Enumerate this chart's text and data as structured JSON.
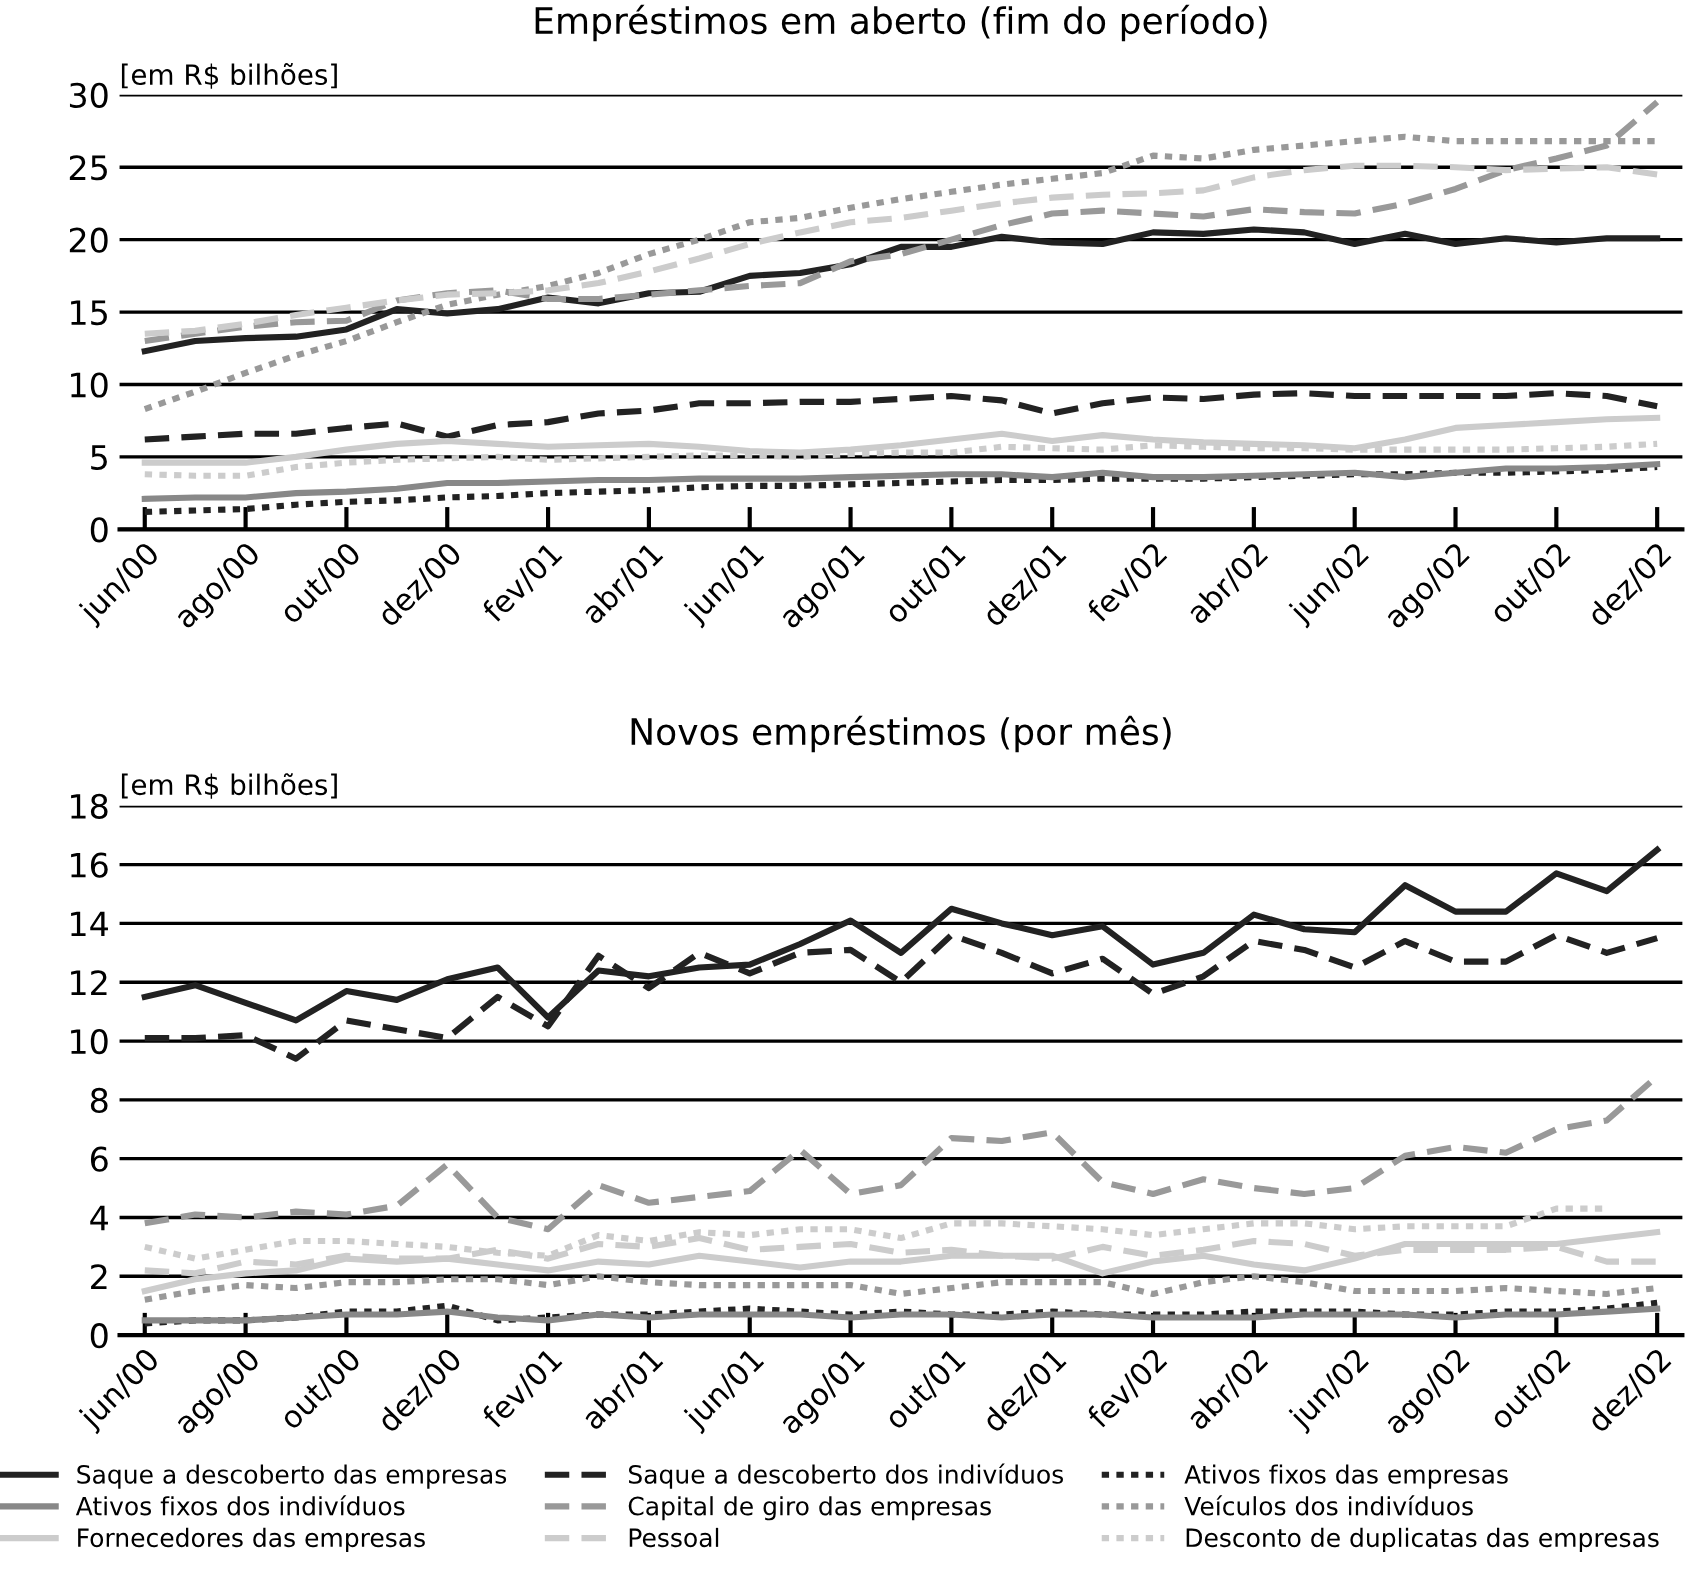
{
  "chart_data": [
    {
      "type": "line",
      "title": "Empréstimos em aberto (fim do período)",
      "ylabel": "[em R$ bilhões]",
      "categories": [
        "jun/00",
        null,
        "ago/00",
        null,
        "out/00",
        null,
        "dez/00",
        null,
        "fev/01",
        null,
        "abr/01",
        null,
        "jun/01",
        null,
        "ago/01",
        null,
        "out/01",
        null,
        "dez/01",
        null,
        "fev/02",
        null,
        "abr/02",
        null,
        "jun/02",
        null,
        "ago/02",
        null,
        "out/02",
        null,
        "dez/02"
      ],
      "ylim": [
        0,
        30
      ],
      "yticks": [
        0,
        5,
        10,
        15,
        20,
        25,
        30
      ],
      "grid": "y",
      "marker": "none",
      "series": [
        {
          "color": "#222222",
          "line_style": "solid",
          "values": [
            12.3,
            13,
            13.2,
            13.3,
            13.8,
            15.2,
            14.9,
            15.2,
            16,
            15.6,
            16.3,
            16.4,
            17.5,
            17.7,
            18.3,
            19.5,
            19.5,
            20.2,
            19.8,
            19.7,
            20.5,
            20.4,
            20.7,
            20.5,
            19.7,
            20.4,
            19.7,
            20.1,
            19.8,
            20.1,
            20.1
          ]
        },
        {
          "color": "#222222",
          "line_style": "dashed",
          "values": [
            6.2,
            6.4,
            6.6,
            6.6,
            7.0,
            7.3,
            6.4,
            7.2,
            7.4,
            8.0,
            8.2,
            8.7,
            8.7,
            8.8,
            8.8,
            9.0,
            9.2,
            8.9,
            8.0,
            8.7,
            9.1,
            9.0,
            9.3,
            9.4,
            9.2,
            9.2,
            9.2,
            9.2,
            9.4,
            9.2,
            8.5
          ]
        },
        {
          "color": "#222222",
          "line_style": "dotted",
          "values": [
            1.2,
            1.3,
            1.4,
            1.7,
            1.9,
            2.0,
            2.2,
            2.3,
            2.5,
            2.6,
            2.7,
            2.9,
            3.0,
            3.0,
            3.1,
            3.2,
            3.3,
            3.4,
            3.4,
            3.5,
            3.5,
            3.5,
            3.6,
            3.7,
            3.8,
            3.8,
            3.9,
            3.9,
            4.0,
            4.1,
            4.3
          ]
        },
        {
          "color": "#888888",
          "line_style": "solid",
          "values": [
            2.1,
            2.2,
            2.2,
            2.5,
            2.6,
            2.8,
            3.2,
            3.2,
            3.3,
            3.4,
            3.4,
            3.5,
            3.5,
            3.5,
            3.6,
            3.7,
            3.8,
            3.8,
            3.6,
            3.9,
            3.6,
            3.6,
            3.7,
            3.8,
            3.9,
            3.6,
            3.9,
            4.2,
            4.2,
            4.3,
            4.5
          ]
        },
        {
          "color": "#999999",
          "line_style": "dashed",
          "values": [
            13.0,
            13.5,
            14.0,
            14.3,
            14.4,
            15.8,
            16.3,
            16.5,
            15.9,
            15.9,
            16.2,
            16.5,
            16.8,
            17.0,
            18.5,
            19.0,
            20.0,
            21.0,
            21.8,
            22.0,
            21.8,
            21.6,
            22.1,
            21.9,
            21.8,
            22.5,
            23.5,
            24.8,
            25.6,
            26.5,
            29.5
          ]
        },
        {
          "color": "#999999",
          "line_style": "dotted",
          "values": [
            8.3,
            9.5,
            10.8,
            12,
            13,
            14.3,
            15.5,
            16.2,
            16.8,
            17.7,
            19,
            20,
            21.2,
            21.5,
            22.2,
            22.8,
            23.3,
            23.8,
            24.2,
            24.6,
            25.8,
            25.6,
            26.2,
            26.5,
            26.8,
            27.1,
            26.8,
            26.8,
            26.8,
            26.8,
            26.8
          ]
        },
        {
          "color": "#cccccc",
          "line_style": "solid",
          "values": [
            4.6,
            4.6,
            4.6,
            5.0,
            5.5,
            5.9,
            6.1,
            5.9,
            5.7,
            5.8,
            5.9,
            5.7,
            5.4,
            5.3,
            5.5,
            5.8,
            6.2,
            6.6,
            6.1,
            6.5,
            6.2,
            6.0,
            5.9,
            5.8,
            5.6,
            6.2,
            7.0,
            7.2,
            7.4,
            7.6,
            7.7
          ]
        },
        {
          "color": "#cccccc",
          "line_style": "dashed",
          "values": [
            13.5,
            13.7,
            14.2,
            14.8,
            15.3,
            15.8,
            16.2,
            16.3,
            16.5,
            17.0,
            17.8,
            18.7,
            19.7,
            20.5,
            21.2,
            21.5,
            22.0,
            22.5,
            22.9,
            23.1,
            23.2,
            23.4,
            24.3,
            24.8,
            25.1,
            25.1,
            25.0,
            24.8,
            24.9,
            25.0,
            24.5
          ]
        },
        {
          "color": "#cccccc",
          "line_style": "dotted",
          "values": [
            3.8,
            3.7,
            3.7,
            4.3,
            4.6,
            4.8,
            4.9,
            5.0,
            4.8,
            4.9,
            5.0,
            5.1,
            5.1,
            5.0,
            5.2,
            5.3,
            5.3,
            5.7,
            5.6,
            5.5,
            5.8,
            5.7,
            5.6,
            5.6,
            5.5,
            5.5,
            5.5,
            5.5,
            5.6,
            5.7,
            5.9
          ]
        }
      ]
    },
    {
      "type": "line",
      "title": "Novos empréstimos (por mês)",
      "ylabel": "[em R$ bilhões]",
      "categories": [
        "jun/00",
        null,
        "ago/00",
        null,
        "out/00",
        null,
        "dez/00",
        null,
        "fev/01",
        null,
        "abr/01",
        null,
        "jun/01",
        null,
        "ago/01",
        null,
        "out/01",
        null,
        "dez/01",
        null,
        "fev/02",
        null,
        "abr/02",
        null,
        "jun/02",
        null,
        "ago/02",
        null,
        "out/02",
        null,
        "dez/02"
      ],
      "ylim": [
        0,
        18
      ],
      "yticks": [
        0,
        2,
        4,
        6,
        8,
        10,
        12,
        14,
        16,
        18
      ],
      "grid": "y",
      "marker": "none",
      "legend": "bottom",
      "series": [
        {
          "name": "Saque a descoberto das empresas",
          "color": "#222222",
          "line_style": "solid",
          "values": [
            11.5,
            11.9,
            11.3,
            10.7,
            11.7,
            11.4,
            12.1,
            12.5,
            10.8,
            12.4,
            12.2,
            12.5,
            12.6,
            13.3,
            14.1,
            13.0,
            14.5,
            14.0,
            13.6,
            13.9,
            12.6,
            13.0,
            14.3,
            13.8,
            13.7,
            15.3,
            14.4,
            14.4,
            15.7,
            15.1,
            16.5
          ]
        },
        {
          "name": "Saque a descoberto dos indivíduos",
          "color": "#222222",
          "line_style": "dashed",
          "values": [
            10.1,
            10.1,
            10.2,
            9.4,
            10.7,
            10.4,
            10.1,
            11.5,
            10.5,
            12.9,
            11.8,
            13.0,
            12.3,
            13.0,
            13.1,
            12.0,
            13.6,
            13.0,
            12.3,
            12.8,
            11.6,
            12.2,
            13.4,
            13.1,
            12.5,
            13.4,
            12.7,
            12.7,
            13.6,
            13.0,
            13.5
          ]
        },
        {
          "name": "Ativos fixos das empresas",
          "color": "#222222",
          "line_style": "dotted",
          "values": [
            0.4,
            0.5,
            0.5,
            0.6,
            0.8,
            0.8,
            1.0,
            0.5,
            0.6,
            0.7,
            0.7,
            0.8,
            0.9,
            0.8,
            0.7,
            0.8,
            0.7,
            0.7,
            0.8,
            0.7,
            0.7,
            0.7,
            0.8,
            0.8,
            0.8,
            0.7,
            0.7,
            0.8,
            0.8,
            0.9,
            1.1
          ]
        },
        {
          "name": "Ativos fixos dos indivíduos",
          "color": "#888888",
          "line_style": "solid",
          "values": [
            0.5,
            0.5,
            0.5,
            0.6,
            0.7,
            0.7,
            0.8,
            0.6,
            0.5,
            0.7,
            0.6,
            0.7,
            0.7,
            0.7,
            0.6,
            0.7,
            0.7,
            0.6,
            0.7,
            0.7,
            0.6,
            0.6,
            0.6,
            0.7,
            0.7,
            0.7,
            0.6,
            0.7,
            0.7,
            0.8,
            0.9
          ]
        },
        {
          "name": "Capital de giro das empresas",
          "color": "#999999",
          "line_style": "dashed",
          "values": [
            3.8,
            4.1,
            4.0,
            4.2,
            4.1,
            4.4,
            5.8,
            4.0,
            3.6,
            5.1,
            4.5,
            4.7,
            4.9,
            6.3,
            4.8,
            5.1,
            6.7,
            6.6,
            6.9,
            5.2,
            4.8,
            5.3,
            5.0,
            4.8,
            5.0,
            6.1,
            6.4,
            6.2,
            7.0,
            7.3,
            8.8
          ]
        },
        {
          "name": "Veículos dos indivíduos",
          "color": "#999999",
          "line_style": "dotted",
          "values": [
            1.2,
            1.5,
            1.7,
            1.6,
            1.8,
            1.8,
            1.9,
            1.9,
            1.7,
            2.0,
            1.8,
            1.7,
            1.7,
            1.7,
            1.7,
            1.4,
            1.6,
            1.8,
            1.8,
            1.8,
            1.4,
            1.8,
            2.0,
            1.8,
            1.5,
            1.5,
            1.5,
            1.6,
            1.5,
            1.4,
            1.6
          ]
        },
        {
          "name": "Fornecedores das empresas",
          "color": "#cccccc",
          "line_style": "solid",
          "values": [
            1.5,
            1.9,
            2.1,
            2.2,
            2.6,
            2.5,
            2.6,
            2.4,
            2.2,
            2.5,
            2.4,
            2.7,
            2.5,
            2.3,
            2.5,
            2.5,
            2.7,
            2.7,
            2.7,
            2.1,
            2.5,
            2.7,
            2.4,
            2.2,
            2.6,
            3.1,
            3.1,
            3.1,
            3.1,
            3.3,
            3.5
          ]
        },
        {
          "name": "Pessoal",
          "color": "#cccccc",
          "line_style": "dashed",
          "values": [
            2.2,
            2.1,
            2.5,
            2.4,
            2.7,
            2.6,
            2.6,
            2.9,
            2.6,
            3.1,
            3.0,
            3.3,
            2.9,
            3.0,
            3.1,
            2.8,
            2.9,
            2.7,
            2.6,
            3.0,
            2.7,
            2.9,
            3.2,
            3.1,
            2.7,
            2.9,
            2.9,
            2.9,
            3.0,
            2.5,
            2.5
          ]
        },
        {
          "name": "Desconto de duplicatas das empresas",
          "color": "#cccccc",
          "line_style": "dotted",
          "values": [
            3.0,
            2.6,
            2.9,
            3.2,
            3.2,
            3.1,
            3.0,
            2.8,
            2.7,
            3.4,
            3.2,
            3.5,
            3.4,
            3.6,
            3.6,
            3.3,
            3.8,
            3.8,
            3.7,
            3.6,
            3.4,
            3.6,
            3.8,
            3.8,
            3.6,
            3.7,
            3.7,
            3.7,
            4.3,
            4.3,
            null
          ]
        }
      ]
    }
  ]
}
